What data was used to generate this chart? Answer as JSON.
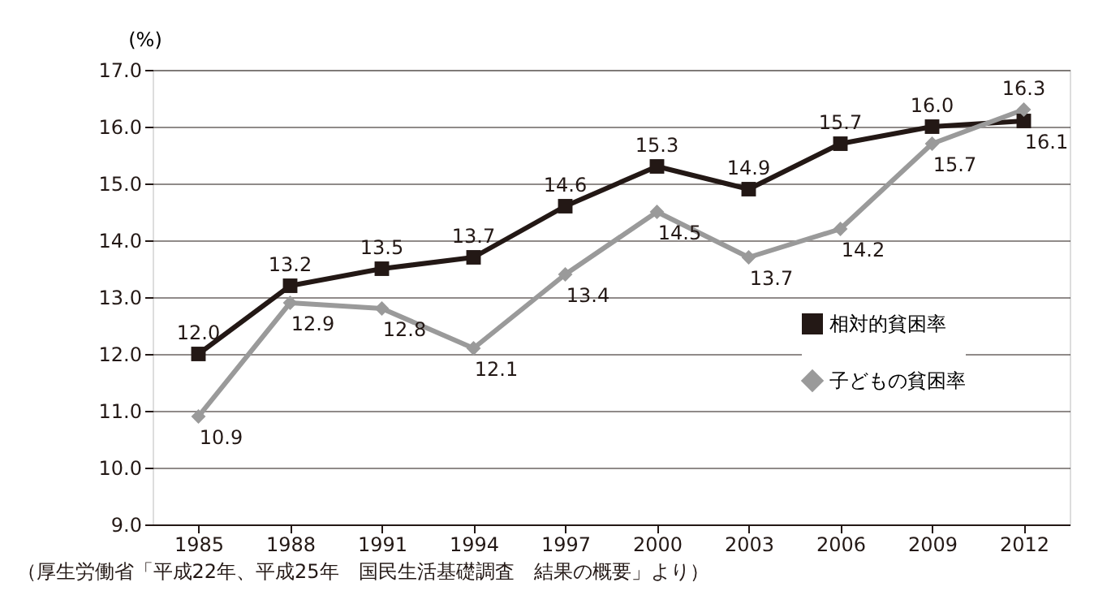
{
  "chart_data": {
    "type": "line",
    "ylabel": "(%)",
    "categories": [
      "1985",
      "1988",
      "1991",
      "1994",
      "1997",
      "2000",
      "2003",
      "2006",
      "2009",
      "2012"
    ],
    "series": [
      {
        "name": "相対的貧困率",
        "color": "#231815",
        "marker": "square",
        "values": [
          12.0,
          13.2,
          13.5,
          13.7,
          14.6,
          15.3,
          14.9,
          15.7,
          16.0,
          16.1
        ],
        "value_labels": [
          "12.0",
          "13.2",
          "13.5",
          "13.7",
          "14.6",
          "15.3",
          "14.9",
          "15.7",
          "16.0",
          "16.1"
        ]
      },
      {
        "name": "子どもの貧困率",
        "color": "#9a9a9a",
        "marker": "diamond",
        "values": [
          10.9,
          12.9,
          12.8,
          12.1,
          13.4,
          14.5,
          13.7,
          14.2,
          15.7,
          16.3
        ],
        "value_labels": [
          "10.9",
          "12.9",
          "12.8",
          "12.1",
          "13.4",
          "14.5",
          "13.7",
          "14.2",
          "15.7",
          "16.3"
        ]
      }
    ],
    "ylim": [
      9.0,
      17.0
    ],
    "yticks": [
      {
        "value": 9,
        "label": "9.0"
      },
      {
        "value": 10,
        "label": "10.0"
      },
      {
        "value": 11,
        "label": "11.0"
      },
      {
        "value": 12,
        "label": "12.0"
      },
      {
        "value": 13,
        "label": "13.0"
      },
      {
        "value": 14,
        "label": "14.0"
      },
      {
        "value": 15,
        "label": "15.0"
      },
      {
        "value": 16,
        "label": "16.0"
      },
      {
        "value": 17,
        "label": "17.0"
      }
    ],
    "grid": "y",
    "legend": "bottom right",
    "data_labels": true,
    "line_style": "solid",
    "annotations": [
      "（厚生労働省「平成22年、平成25年　国民生活基礎調査　結果の概要」より）"
    ]
  }
}
